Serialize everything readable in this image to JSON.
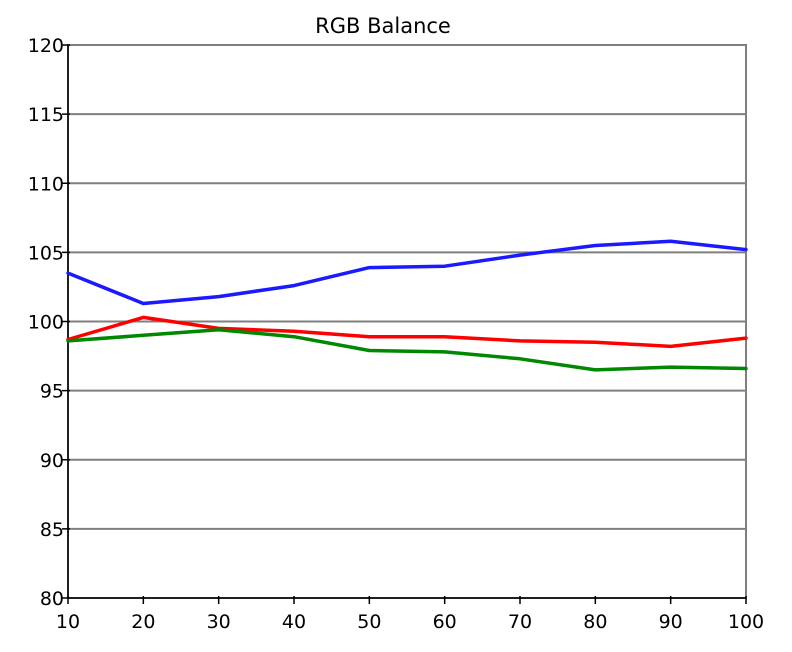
{
  "chart_data": {
    "type": "line",
    "title": "RGB Balance",
    "xlabel": "",
    "ylabel": "",
    "x": [
      10,
      20,
      30,
      40,
      50,
      60,
      70,
      80,
      90,
      100
    ],
    "xlim": [
      10,
      100
    ],
    "ylim": [
      80,
      120
    ],
    "xticks": [
      10,
      20,
      30,
      40,
      50,
      60,
      70,
      80,
      90,
      100
    ],
    "yticks": [
      80,
      85,
      90,
      95,
      100,
      105,
      110,
      115,
      120
    ],
    "grid": true,
    "legend": "none",
    "series": [
      {
        "color": "#ff0000",
        "values": [
          98.7,
          100.3,
          99.5,
          99.3,
          98.9,
          98.9,
          98.6,
          98.5,
          98.2,
          98.8
        ]
      },
      {
        "color": "#008800",
        "values": [
          98.6,
          99.0,
          99.4,
          98.9,
          97.9,
          97.8,
          97.3,
          96.5,
          96.7,
          96.6
        ]
      },
      {
        "color": "#1a1aff",
        "values": [
          103.5,
          101.3,
          101.8,
          102.6,
          103.9,
          104.0,
          104.8,
          105.5,
          105.8,
          105.2
        ]
      }
    ]
  }
}
